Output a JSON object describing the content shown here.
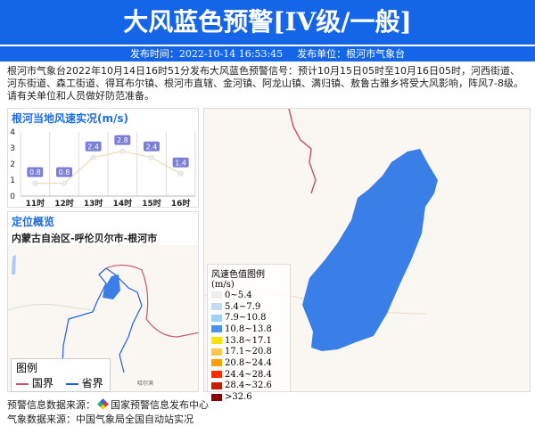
{
  "header": {
    "title": "大风蓝色预警[IV级/一般]",
    "publish_time": "发布时间：2022-10-14 16:53:45",
    "publisher": "发布单位：根河市气象台"
  },
  "description": "根河市气象台2022年10月14日16时51分发布大风蓝色预警信号：预计10月15日05时至10月16日05时，河西街道、河东街道、森工街道、得耳布尔镇、根河市直辖、金河镇、阿龙山镇、满归镇、敖鲁古雅乡将受大风影响，阵风7-8级。请有关单位和人员做好防范准备。",
  "chart_data": {
    "type": "line",
    "title": "根河当地风速实况(m/s)",
    "categories": [
      "11时",
      "12时",
      "13时",
      "14时",
      "15时",
      "16时"
    ],
    "values": [
      0.8,
      0.8,
      2.4,
      2.8,
      2.4,
      1.4
    ],
    "ylim": [
      0,
      4
    ],
    "yticks": [
      "0",
      "1",
      "2",
      "3",
      "4"
    ],
    "grid": true,
    "line_color": "#f0d8b8",
    "label_color": "#7b7fd6"
  },
  "location": {
    "title": "定位概览",
    "path": "内蒙古自治区-呼伦贝尔市-根河市",
    "city_label": "哈尔滨",
    "legend_title": "图例",
    "legend_items": [
      {
        "label": "国界",
        "color": "#c8566a"
      },
      {
        "label": "省界",
        "color": "#1e5ee8"
      }
    ]
  },
  "wind_legend": {
    "title": "风速色值图例 (m/s)",
    "items": [
      {
        "label": "0~5.4",
        "color": "#eeeeee"
      },
      {
        "label": "5.4~7.9",
        "color": "#c2dcf2"
      },
      {
        "label": "7.9~10.8",
        "color": "#9fd0f5"
      },
      {
        "label": "10.8~13.8",
        "color": "#4a90f0"
      },
      {
        "label": "13.8~17.1",
        "color": "#ffe000"
      },
      {
        "label": "17.1~20.8",
        "color": "#ffc84a"
      },
      {
        "label": "20.8~24.4",
        "color": "#ff9e00"
      },
      {
        "label": "24.4~28.4",
        "color": "#ff2a00"
      },
      {
        "label": "28.4~32.6",
        "color": "#c81c00"
      },
      {
        "label": ">32.6",
        "color": "#8b0000"
      }
    ]
  },
  "footer": {
    "warning_source": "预警信息数据来源：",
    "warning_org": "国家预警信息发布中心",
    "weather_source": "气象数据来源：中国气象局全国自动站实况"
  }
}
